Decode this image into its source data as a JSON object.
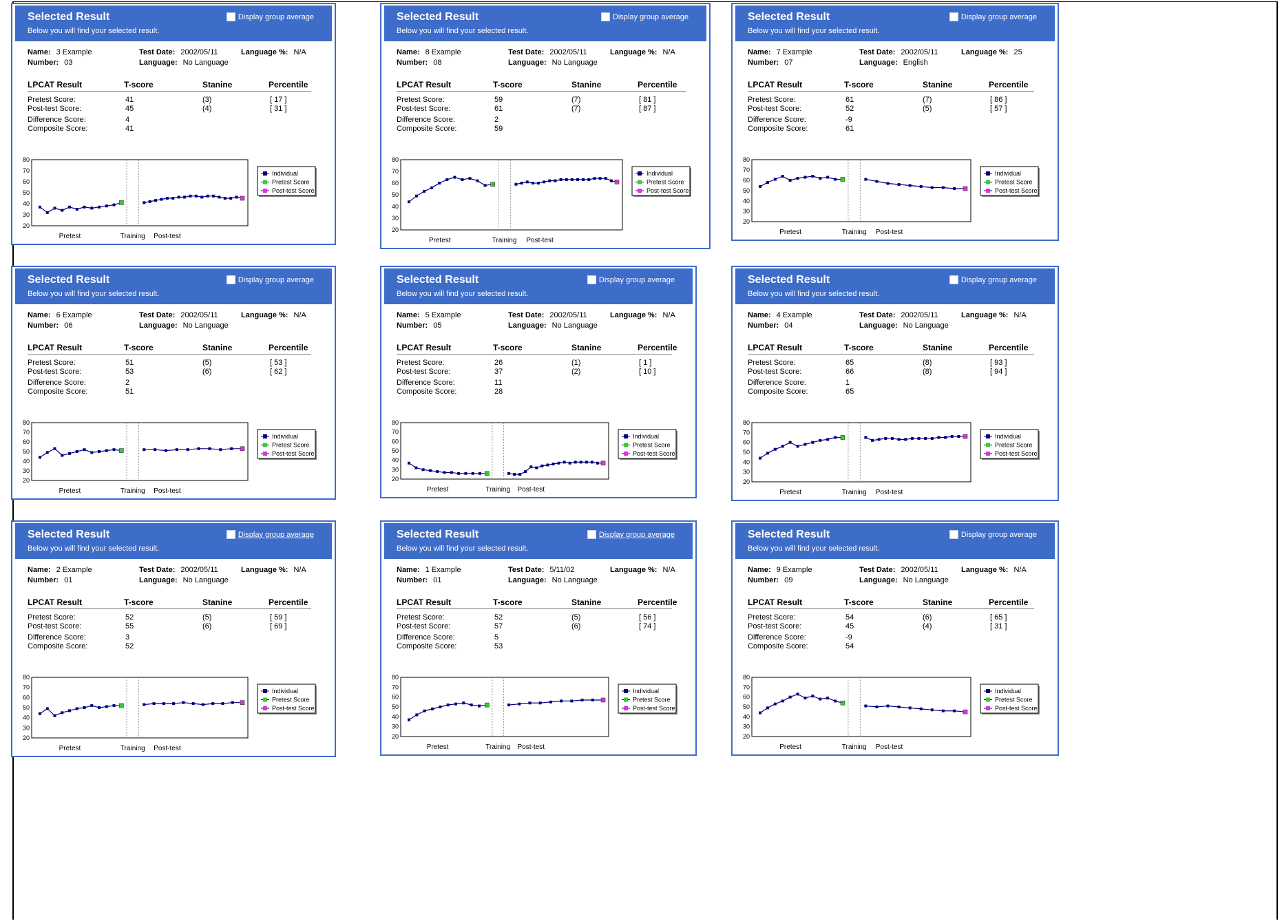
{
  "common": {
    "title": "Selected Result",
    "subtitle": "Below you will find your selected result.",
    "checkbox_label": "Display group average",
    "labels": {
      "name": "Name:",
      "number": "Number:",
      "test_date": "Test Date:",
      "language": "Language:",
      "language_pct": "Language %:",
      "lpcat_result": "LPCAT Result",
      "tscore": "T-score",
      "stanine": "Stanine",
      "percentile": "Percentile",
      "pretest_score": "Pretest Score:",
      "posttest_score": "Post-test Score:",
      "difference_score": "Difference Score:",
      "composite_score": "Composite Score:"
    },
    "legend": [
      "Individual",
      "Pretest Score",
      "Post-test Score"
    ],
    "x_labels": [
      "Pretest",
      "Training",
      "Post-test"
    ],
    "y_ticks": [
      20,
      30,
      40,
      50,
      60,
      70,
      80
    ],
    "colors": {
      "header": "#3e6cc9",
      "line": "#00007f",
      "pretest": "#33cc33",
      "posttest": "#e030e0"
    }
  },
  "panels": [
    {
      "name": "3 Example",
      "number": "03",
      "test_date": "2002/05/11",
      "language": "No Language",
      "language_pct": "N/A",
      "pre": {
        "t": "41",
        "s": "(3)",
        "p": "[ 17 ]"
      },
      "post": {
        "t": "45",
        "s": "(4)",
        "p": "[ 31 ]"
      },
      "diff": "4",
      "comp": "41",
      "ul": false,
      "chart_data": {
        "type": "line",
        "ylim": [
          20,
          80
        ],
        "pretest": [
          37,
          32,
          36,
          34,
          37,
          35,
          37,
          36,
          37,
          38,
          39,
          41
        ],
        "posttest": [
          41,
          42,
          43,
          44,
          45,
          45,
          46,
          46,
          47,
          47,
          46,
          47,
          47,
          46,
          45,
          45,
          46,
          45
        ]
      }
    },
    {
      "name": "8 Example",
      "number": "08",
      "test_date": "2002/05/11",
      "language": "No Language",
      "language_pct": "N/A",
      "pre": {
        "t": "59",
        "s": "(7)",
        "p": "[ 81 ]"
      },
      "post": {
        "t": "61",
        "s": "(7)",
        "p": "[ 87 ]"
      },
      "diff": "2",
      "comp": "59",
      "ul": false,
      "chart_data": {
        "type": "line",
        "ylim": [
          20,
          80
        ],
        "pretest": [
          44,
          49,
          53,
          56,
          60,
          63,
          65,
          63,
          64,
          62,
          58,
          59
        ],
        "posttest": [
          59,
          60,
          61,
          60,
          60,
          61,
          62,
          62,
          63,
          63,
          63,
          63,
          63,
          63,
          64,
          64,
          64,
          62,
          61
        ]
      }
    },
    {
      "name": "7 Example",
      "number": "07",
      "test_date": "2002/05/11",
      "language": "English",
      "language_pct": "25",
      "pre": {
        "t": "61",
        "s": "(7)",
        "p": "[ 86 ]"
      },
      "post": {
        "t": "52",
        "s": "(5)",
        "p": "[ 57 ]"
      },
      "diff": "-9",
      "comp": "61",
      "ul": false,
      "chart_data": {
        "type": "line",
        "ylim": [
          20,
          80
        ],
        "pretest": [
          54,
          58,
          61,
          64,
          60,
          62,
          63,
          64,
          62,
          63,
          61,
          61
        ],
        "posttest": [
          61,
          59,
          57,
          56,
          55,
          54,
          53,
          53,
          52,
          52
        ]
      }
    },
    {
      "name": "6 Example",
      "number": "06",
      "test_date": "2002/05/11",
      "language": "No Language",
      "language_pct": "N/A",
      "pre": {
        "t": "51",
        "s": "(5)",
        "p": "[ 53 ]"
      },
      "post": {
        "t": "53",
        "s": "(6)",
        "p": "[ 62 ]"
      },
      "diff": "2",
      "comp": "51",
      "ul": false,
      "chart_data": {
        "type": "line",
        "ylim": [
          20,
          80
        ],
        "pretest": [
          44,
          49,
          53,
          46,
          48,
          50,
          52,
          49,
          50,
          51,
          52,
          51
        ],
        "posttest": [
          52,
          52,
          51,
          52,
          52,
          53,
          53,
          52,
          53,
          53
        ]
      }
    },
    {
      "name": "5 Example",
      "number": "05",
      "test_date": "2002/05/11",
      "language": "No Language",
      "language_pct": "N/A",
      "pre": {
        "t": "26",
        "s": "(1)",
        "p": "[ 1 ]"
      },
      "post": {
        "t": "37",
        "s": "(2)",
        "p": "[ 10 ]"
      },
      "diff": "11",
      "comp": "28",
      "ul": false,
      "chart_data": {
        "type": "line",
        "ylim": [
          20,
          80
        ],
        "pretest": [
          37,
          32,
          30,
          29,
          28,
          27,
          27,
          26,
          26,
          26,
          26,
          26
        ],
        "posttest": [
          26,
          25,
          25,
          28,
          33,
          32,
          34,
          35,
          36,
          37,
          38,
          37,
          38,
          38,
          38,
          38,
          37,
          37
        ]
      }
    },
    {
      "name": "4 Example",
      "number": "04",
      "test_date": "2002/05/11",
      "language": "No Language",
      "language_pct": "N/A",
      "pre": {
        "t": "65",
        "s": "(8)",
        "p": "[ 93 ]"
      },
      "post": {
        "t": "66",
        "s": "(8)",
        "p": "[ 94 ]"
      },
      "diff": "1",
      "comp": "65",
      "ul": false,
      "chart_data": {
        "type": "line",
        "ylim": [
          20,
          80
        ],
        "pretest": [
          44,
          49,
          53,
          56,
          60,
          56,
          58,
          60,
          62,
          63,
          65,
          65
        ],
        "posttest": [
          65,
          62,
          63,
          64,
          64,
          63,
          63,
          64,
          64,
          64,
          64,
          65,
          65,
          66,
          66,
          66
        ]
      }
    },
    {
      "name": "2 Example",
      "number": "01",
      "test_date": "2002/05/11",
      "language": "No Language",
      "language_pct": "N/A",
      "pre": {
        "t": "52",
        "s": "(5)",
        "p": "[ 59 ]"
      },
      "post": {
        "t": "55",
        "s": "(6)",
        "p": "[ 69 ]"
      },
      "diff": "3",
      "comp": "52",
      "ul": true,
      "chart_data": {
        "type": "line",
        "ylim": [
          20,
          80
        ],
        "pretest": [
          44,
          49,
          42,
          45,
          47,
          49,
          50,
          52,
          50,
          51,
          52,
          52
        ],
        "posttest": [
          53,
          54,
          54,
          54,
          55,
          54,
          53,
          54,
          54,
          55,
          55
        ]
      }
    },
    {
      "name": "1 Example",
      "number": "01",
      "test_date": "5/11/02",
      "language": "No Language",
      "language_pct": "N/A",
      "pre": {
        "t": "52",
        "s": "(5)",
        "p": "[ 56 ]"
      },
      "post": {
        "t": "57",
        "s": "(6)",
        "p": "[ 74 ]"
      },
      "diff": "5",
      "comp": "53",
      "ul": true,
      "chart_data": {
        "type": "line",
        "ylim": [
          20,
          80
        ],
        "pretest": [
          37,
          42,
          46,
          48,
          50,
          52,
          53,
          54,
          52,
          51,
          52
        ],
        "posttest": [
          52,
          53,
          54,
          54,
          55,
          56,
          56,
          57,
          57,
          57
        ]
      }
    },
    {
      "name": "9 Example",
      "number": "09",
      "test_date": "2002/05/11",
      "language": "No Language",
      "language_pct": "N/A",
      "pre": {
        "t": "54",
        "s": "(6)",
        "p": "[ 65 ]"
      },
      "post": {
        "t": "45",
        "s": "(4)",
        "p": "[ 31 ]"
      },
      "diff": "-9",
      "comp": "54",
      "ul": false,
      "chart_data": {
        "type": "line",
        "ylim": [
          20,
          80
        ],
        "pretest": [
          44,
          49,
          53,
          56,
          60,
          63,
          59,
          61,
          58,
          59,
          56,
          54
        ],
        "posttest": [
          51,
          50,
          51,
          50,
          49,
          48,
          47,
          46,
          46,
          45
        ]
      }
    }
  ]
}
